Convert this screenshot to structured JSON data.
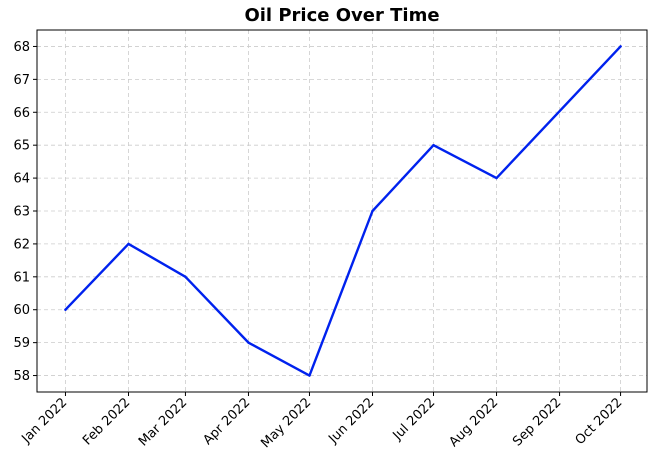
{
  "chart_data": {
    "type": "line",
    "title": "Oil Price Over Time",
    "xlabel": "",
    "ylabel": "",
    "categories": [
      "Jan 2022",
      "Feb 2022",
      "Mar 2022",
      "Apr 2022",
      "May 2022",
      "Jun 2022",
      "Jul 2022",
      "Aug 2022",
      "Sep 2022",
      "Oct 2022"
    ],
    "x": [
      "2022-01-01",
      "2022-02-01",
      "2022-03-01",
      "2022-04-01",
      "2022-05-01",
      "2022-06-01",
      "2022-07-01",
      "2022-08-01",
      "2022-09-01",
      "2022-10-01"
    ],
    "series": [
      {
        "x": [
          "2022-01-01",
          "2022-02-01",
          "2022-03-01",
          "2022-04-01",
          "2022-05-01",
          "2022-06-01",
          "2022-07-01",
          "2022-08-01",
          "2022-10-01"
        ],
        "values": [
          60,
          62,
          61,
          59,
          58,
          63,
          65,
          64,
          68
        ],
        "color": "#0022ee"
      }
    ],
    "yticks": [
      58,
      59,
      60,
      61,
      62,
      63,
      64,
      65,
      66,
      67,
      68
    ],
    "ylim": [
      57.5,
      68.5
    ],
    "xlim": [
      "2021-12-18",
      "2022-10-14"
    ],
    "grid": true,
    "grid_style": "dashed",
    "legend": "none"
  }
}
